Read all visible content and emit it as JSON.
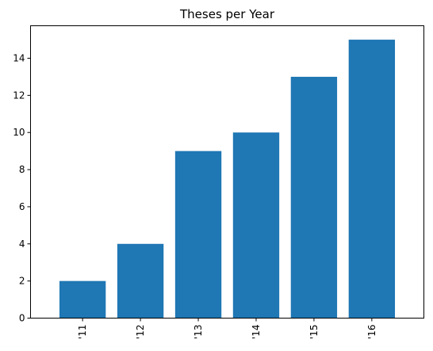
{
  "chart_data": {
    "type": "bar",
    "title": "Theses per Year",
    "xlabel": "",
    "ylabel": "",
    "categories": [
      "'11",
      "'12",
      "'13",
      "'14",
      "'15",
      "'16"
    ],
    "values": [
      2,
      4,
      9,
      10,
      13,
      15
    ],
    "ylim": [
      0,
      15.75
    ],
    "yticks": [
      "0",
      "2",
      "4",
      "6",
      "8",
      "10",
      "12",
      "14"
    ],
    "bar_color": "#1f77b4",
    "grid": false,
    "legend": "none"
  }
}
